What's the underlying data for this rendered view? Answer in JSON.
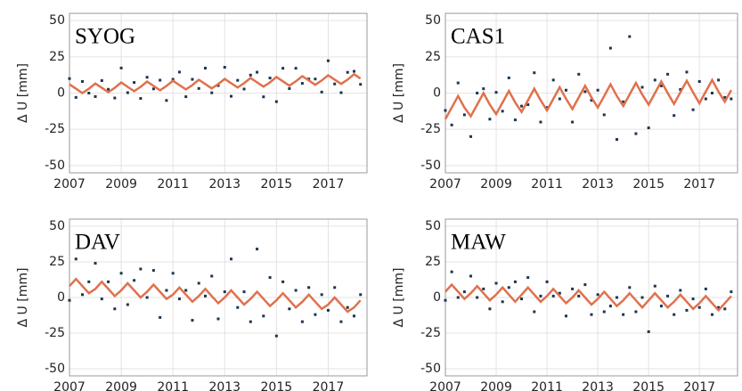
{
  "chart_data": [
    {
      "type": "scatter",
      "title": "SYOG",
      "y_label": "Δ U [mm]",
      "x": [
        2007,
        2007.25,
        2007.5,
        2007.75,
        2008,
        2008.25,
        2008.5,
        2008.75,
        2009,
        2009.25,
        2009.5,
        2009.75,
        2010,
        2010.25,
        2010.5,
        2010.75,
        2011,
        2011.25,
        2011.5,
        2011.75,
        2012,
        2012.25,
        2012.5,
        2012.75,
        2013,
        2013.25,
        2013.5,
        2013.75,
        2014,
        2014.25,
        2014.5,
        2014.75,
        2015,
        2015.25,
        2015.5,
        2015.75,
        2016,
        2016.25,
        2016.5,
        2016.75,
        2017,
        2017.25,
        2017.5,
        2017.75,
        2018,
        2018.25
      ],
      "series": [
        {
          "color": "#1b3550",
          "values": [
            10,
            -3,
            8,
            0,
            -2.4,
            8.6,
            2.6,
            -3.4,
            17.3,
            0.3,
            7.3,
            -3.7,
            10.9,
            2.9,
            8.9,
            -5.1,
            9.5,
            14.5,
            -2.5,
            9.5,
            3.2,
            17.2,
            0.2,
            5.2,
            17.8,
            -2.2,
            8.8,
            2.8,
            12.4,
            14.4,
            -2.6,
            10.4,
            -5.9,
            17.1,
            3.1,
            17.1,
            6.7,
            9.7,
            9.7,
            0.7,
            22.3,
            6.3,
            0.3,
            14.3,
            15,
            6
          ]
        },
        {
          "color": "#e0714d",
          "mode": "line",
          "values": [
            6,
            3,
            0,
            3,
            6.6,
            3.6,
            0.6,
            3.6,
            7.3,
            4.3,
            1.3,
            4.3,
            7.9,
            4.9,
            1.9,
            4.9,
            8.5,
            5.5,
            2.5,
            5.5,
            9.2,
            6.2,
            3.2,
            6.2,
            9.8,
            6.8,
            3.8,
            6.8,
            10.4,
            7.4,
            4.4,
            7.4,
            11.1,
            8.1,
            5.1,
            8.1,
            11.7,
            8.7,
            5.7,
            8.7,
            12.3,
            9.3,
            6.3,
            9.3,
            13,
            10
          ]
        }
      ],
      "xlim": [
        2007,
        2018.5
      ],
      "ylim": [
        -55,
        55
      ],
      "xticks": [
        2007,
        2009,
        2011,
        2013,
        2015,
        2017
      ],
      "yticks": [
        -50,
        -25,
        0,
        25,
        50
      ],
      "grid": true
    },
    {
      "type": "scatter",
      "title": "CAS1",
      "y_label": "Δ U [mm]",
      "x": [
        2007,
        2007.25,
        2007.5,
        2007.75,
        2008,
        2008.25,
        2008.5,
        2008.75,
        2009,
        2009.25,
        2009.5,
        2009.75,
        2010,
        2010.25,
        2010.5,
        2010.75,
        2011,
        2011.25,
        2011.5,
        2011.75,
        2012,
        2012.25,
        2012.5,
        2012.75,
        2013,
        2013.25,
        2013.5,
        2013.75,
        2014,
        2014.25,
        2014.5,
        2014.75,
        2015,
        2015.25,
        2015.5,
        2015.75,
        2016,
        2016.25,
        2016.5,
        2016.75,
        2017,
        2017.25,
        2017.5,
        2017.75,
        2018,
        2018.25
      ],
      "series": [
        {
          "color": "#1b3550",
          "values": [
            -12,
            -22,
            7,
            -15,
            -30,
            0,
            3,
            -18,
            0.5,
            -12.5,
            10.5,
            -18.5,
            -9,
            -8,
            14,
            -20,
            -10,
            9,
            -4,
            2,
            -20,
            13,
            1,
            -5,
            2,
            -15,
            31,
            -32,
            -6,
            39,
            -28,
            4,
            -24,
            9,
            5,
            13,
            -15.5,
            2.5,
            14.5,
            -11.5,
            8,
            -4,
            0,
            9,
            -3,
            -4
          ]
        },
        {
          "color": "#e0714d",
          "mode": "line",
          "values": [
            -18,
            -10,
            -2,
            -10,
            -16,
            -8,
            0,
            -8,
            -14.5,
            -6.5,
            1.5,
            -6.5,
            -13,
            -5,
            3,
            -5,
            -12,
            -4,
            4,
            -4,
            -11,
            -3,
            5,
            -3,
            -10,
            -2,
            6,
            -2,
            -9,
            -1,
            7,
            -1,
            -8,
            0,
            8,
            0,
            -7.5,
            0.5,
            8.5,
            0.5,
            -7,
            1,
            9,
            1,
            -6,
            2
          ]
        }
      ],
      "xlim": [
        2007,
        2018.5
      ],
      "ylim": [
        -55,
        55
      ],
      "xticks": [
        2007,
        2009,
        2011,
        2013,
        2015,
        2017
      ],
      "yticks": [
        -50,
        -25,
        0,
        25,
        50
      ],
      "grid": true
    },
    {
      "type": "scatter",
      "title": "DAV",
      "y_label": "Δ U [mm]",
      "x": [
        2007,
        2007.25,
        2007.5,
        2007.75,
        2008,
        2008.25,
        2008.5,
        2008.75,
        2009,
        2009.25,
        2009.5,
        2009.75,
        2010,
        2010.25,
        2010.5,
        2010.75,
        2011,
        2011.25,
        2011.5,
        2011.75,
        2012,
        2012.25,
        2012.5,
        2012.75,
        2013,
        2013.25,
        2013.5,
        2013.75,
        2014,
        2014.25,
        2014.5,
        2014.75,
        2015,
        2015.25,
        2015.5,
        2015.75,
        2016,
        2016.25,
        2016.5,
        2016.75,
        2017,
        2017.25,
        2017.5,
        2017.75,
        2018,
        2018.25
      ],
      "series": [
        {
          "color": "#1b3550",
          "values": [
            -2,
            27,
            2,
            11,
            24,
            -1,
            11,
            -8,
            17,
            -5,
            12,
            20,
            0,
            19,
            -14,
            5,
            17,
            -1,
            5,
            -16,
            10,
            1,
            15,
            -15,
            4,
            27,
            -7,
            4,
            -17,
            34,
            -13,
            14,
            -27,
            11,
            -8,
            5,
            -17,
            7,
            -12,
            2,
            -9,
            7,
            -17,
            -7,
            -13,
            2
          ]
        },
        {
          "color": "#e0714d",
          "mode": "line",
          "values": [
            8,
            13,
            8,
            3,
            6,
            11,
            6,
            1,
            5,
            10,
            5,
            0,
            4,
            9,
            4,
            -1,
            2,
            7,
            2,
            -3,
            1,
            6,
            1,
            -4,
            0,
            5,
            0,
            -5,
            -1,
            4,
            -1,
            -6,
            -2,
            3,
            -2,
            -7,
            -3,
            2,
            -3,
            -8,
            -5,
            0,
            -5,
            -10,
            -7,
            -2
          ]
        }
      ],
      "xlim": [
        2007,
        2018.5
      ],
      "ylim": [
        -55,
        55
      ],
      "xticks": [
        2007,
        2009,
        2011,
        2013,
        2015,
        2017
      ],
      "yticks": [
        -50,
        -25,
        0,
        25,
        50
      ],
      "grid": true
    },
    {
      "type": "scatter",
      "title": "MAW",
      "y_label": "Δ U [mm]",
      "x": [
        2007,
        2007.25,
        2007.5,
        2007.75,
        2008,
        2008.25,
        2008.5,
        2008.75,
        2009,
        2009.25,
        2009.5,
        2009.75,
        2010,
        2010.25,
        2010.5,
        2010.75,
        2011,
        2011.25,
        2011.5,
        2011.75,
        2012,
        2012.25,
        2012.5,
        2012.75,
        2013,
        2013.25,
        2013.5,
        2013.75,
        2014,
        2014.25,
        2014.5,
        2014.75,
        2015,
        2015.25,
        2015.5,
        2015.75,
        2016,
        2016.25,
        2016.5,
        2016.75,
        2017,
        2017.25,
        2017.5,
        2017.75,
        2018,
        2018.25
      ],
      "series": [
        {
          "color": "#1b3550",
          "values": [
            -2,
            18,
            0,
            4,
            15,
            0,
            6,
            -8,
            10,
            -3,
            7,
            11,
            -1,
            14,
            -10,
            1,
            11,
            1,
            3,
            -13,
            6,
            1,
            9,
            -12,
            2,
            -10,
            -6,
            0,
            -12,
            7,
            -10,
            0,
            -24,
            8,
            -6,
            1,
            -12,
            5,
            -9,
            -1,
            -7,
            6,
            -12,
            -7,
            -8,
            4
          ]
        },
        {
          "color": "#e0714d",
          "mode": "line",
          "values": [
            4,
            9,
            4,
            -1,
            3,
            8,
            3,
            -2,
            2,
            7,
            2,
            -3,
            2,
            7,
            2,
            -3,
            1,
            6,
            1,
            -4,
            0,
            5,
            0,
            -5,
            -1,
            4,
            -1,
            -6,
            -2,
            3,
            -2,
            -7,
            -2,
            3,
            -2,
            -7,
            -3,
            2,
            -3,
            -8,
            -4,
            1,
            -4,
            -9,
            -4,
            1
          ]
        }
      ],
      "xlim": [
        2007,
        2018.5
      ],
      "ylim": [
        -55,
        55
      ],
      "xticks": [
        2007,
        2009,
        2011,
        2013,
        2015,
        2017
      ],
      "yticks": [
        -50,
        -25,
        0,
        25,
        50
      ],
      "grid": true
    }
  ]
}
